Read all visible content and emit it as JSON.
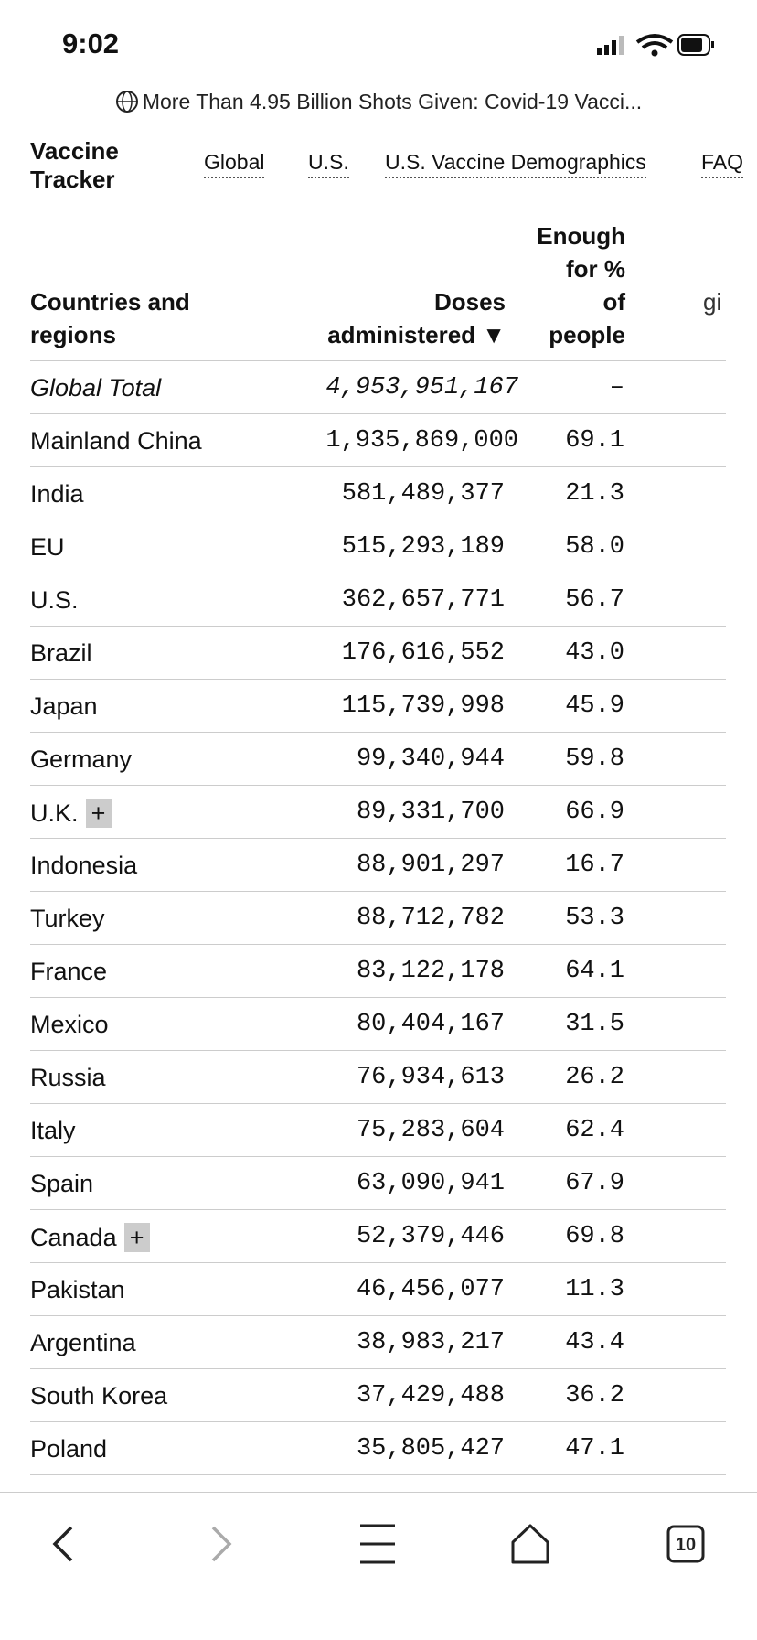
{
  "status_bar": {
    "time": "9:02"
  },
  "address_bar": {
    "title": "More Than 4.95 Billion Shots Given: Covid-19 Vacci..."
  },
  "nav": {
    "title_lines": [
      "Vaccine",
      "Tracker"
    ],
    "links": [
      "Global",
      "U.S.",
      "U.S. Vaccine Demographics",
      "FAQ"
    ]
  },
  "table": {
    "header": [
      [
        "Countries and",
        "regions"
      ],
      [
        "Doses",
        "administered ▼"
      ],
      [
        "Enough",
        "for %",
        "of",
        "people"
      ],
      [
        "gi"
      ]
    ],
    "rows": [
      {
        "name": "Global Total",
        "doses": "4,953,951,167",
        "percent": "–"
      },
      {
        "name": "Mainland China",
        "doses": "1,935,869,000",
        "percent": "69.1"
      },
      {
        "name": "India",
        "doses": "581,489,377",
        "percent": "21.3"
      },
      {
        "name": "EU",
        "doses": "515,293,189",
        "percent": "58.0"
      },
      {
        "name": "U.S.",
        "doses": "362,657,771",
        "percent": "56.7"
      },
      {
        "name": "Brazil",
        "doses": "176,616,552",
        "percent": "43.0"
      },
      {
        "name": "Japan",
        "doses": "115,739,998",
        "percent": "45.9"
      },
      {
        "name": "Germany",
        "doses": "99,340,944",
        "percent": "59.8"
      },
      {
        "name": "U.K.",
        "expand": "+",
        "doses": "89,331,700",
        "percent": "66.9"
      },
      {
        "name": "Indonesia",
        "doses": "88,901,297",
        "percent": "16.7"
      },
      {
        "name": "Turkey",
        "doses": "88,712,782",
        "percent": "53.3"
      },
      {
        "name": "France",
        "doses": "83,122,178",
        "percent": "64.1"
      },
      {
        "name": "Mexico",
        "doses": "80,404,167",
        "percent": "31.5"
      },
      {
        "name": "Russia",
        "doses": "76,934,613",
        "percent": "26.2"
      },
      {
        "name": "Italy",
        "doses": "75,283,604",
        "percent": "62.4"
      },
      {
        "name": "Spain",
        "doses": "63,090,941",
        "percent": "67.9"
      },
      {
        "name": "Canada",
        "expand": "+",
        "doses": "52,379,446",
        "percent": "69.8"
      },
      {
        "name": "Pakistan",
        "doses": "46,456,077",
        "percent": "11.3"
      },
      {
        "name": "Argentina",
        "doses": "38,983,217",
        "percent": "43.4"
      },
      {
        "name": "South Korea",
        "doses": "37,429,488",
        "percent": "36.2"
      },
      {
        "name": "Poland",
        "doses": "35,805,427",
        "percent": "47.1"
      }
    ]
  },
  "toolbar": {
    "tab_count": "10"
  }
}
